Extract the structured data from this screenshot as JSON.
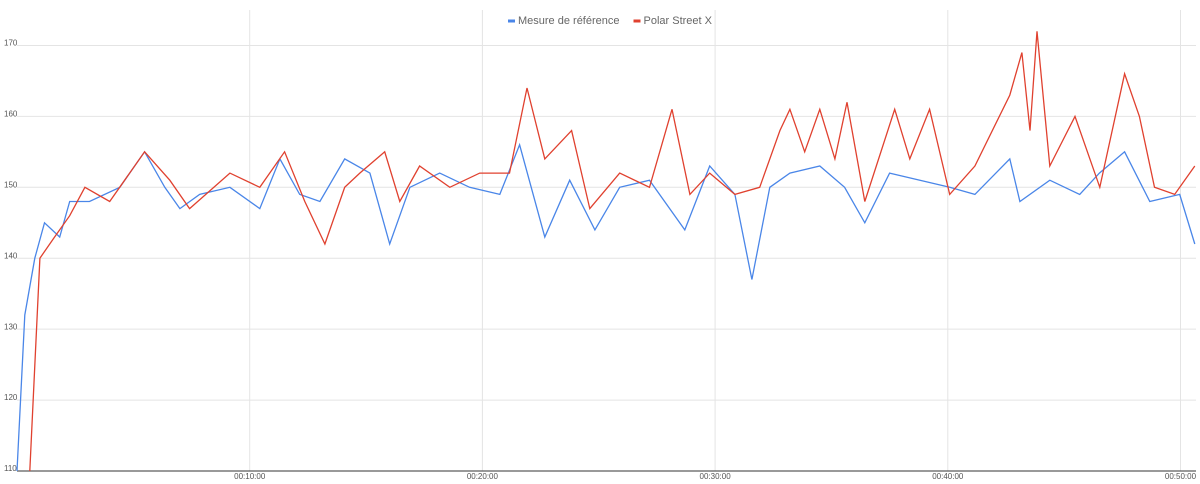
{
  "chart_data": {
    "type": "line",
    "legend": "top",
    "grid": true,
    "xlim": [
      0,
      3040
    ],
    "ylim": [
      110,
      175
    ],
    "yticks": [
      110,
      120,
      130,
      140,
      150,
      160,
      170
    ],
    "xticks": [
      {
        "value": 600,
        "label": "00:10:00"
      },
      {
        "value": 1200,
        "label": "00:20:00"
      },
      {
        "value": 1800,
        "label": "00:30:00"
      },
      {
        "value": 2400,
        "label": "00:40:00"
      },
      {
        "value": 3000,
        "label": "00:50:00"
      }
    ],
    "series": [
      {
        "name": "Mesure de référence",
        "color": "#4a86e8",
        "x": [
          0,
          20,
          46,
          71,
          110,
          136,
          187,
          265,
          329,
          381,
          420,
          471,
          549,
          626,
          678,
          729,
          781,
          845,
          910,
          961,
          1013,
          1090,
          1167,
          1245,
          1296,
          1361,
          1425,
          1490,
          1554,
          1631,
          1722,
          1786,
          1851,
          1895,
          1941,
          1993,
          2070,
          2134,
          2186,
          2250,
          2328,
          2405,
          2470,
          2560,
          2586,
          2663,
          2740,
          2791,
          2856,
          2921,
          2998,
          3037
        ],
        "values": [
          110,
          132,
          140,
          145,
          143,
          148,
          148,
          150,
          155,
          150,
          147,
          149,
          150,
          147,
          154,
          149,
          148,
          154,
          152,
          142,
          150,
          152,
          150,
          149,
          156,
          143,
          151,
          144,
          150,
          151,
          144,
          153,
          149,
          137,
          150,
          152,
          153,
          150,
          145,
          152,
          151,
          150,
          149,
          154,
          148,
          151,
          149,
          152,
          155,
          148,
          149,
          142
        ]
      },
      {
        "name": "Polar Street X",
        "color": "#e0412f",
        "x": [
          33,
          59,
          97,
          136,
          175,
          239,
          329,
          394,
          445,
          549,
          626,
          690,
          742,
          794,
          845,
          884,
          948,
          987,
          1038,
          1116,
          1193,
          1270,
          1315,
          1361,
          1430,
          1477,
          1554,
          1631,
          1689,
          1735,
          1786,
          1851,
          1915,
          1967,
          1993,
          2031,
          2070,
          2109,
          2140,
          2186,
          2263,
          2302,
          2353,
          2405,
          2470,
          2560,
          2591,
          2612,
          2630,
          2663,
          2728,
          2792,
          2856,
          2894,
          2933,
          2985,
          3037
        ],
        "values": [
          110,
          140,
          143,
          146,
          150,
          148,
          155,
          151,
          147,
          152,
          150,
          155,
          148,
          142,
          150,
          152,
          155,
          148,
          153,
          150,
          152,
          152,
          164,
          154,
          158,
          147,
          152,
          150,
          161,
          149,
          152,
          149,
          150,
          158,
          161,
          155,
          161,
          154,
          162,
          148,
          161,
          154,
          161,
          149,
          153,
          163,
          169,
          158,
          172,
          153,
          160,
          150,
          166,
          160,
          150,
          149,
          153
        ]
      }
    ]
  }
}
